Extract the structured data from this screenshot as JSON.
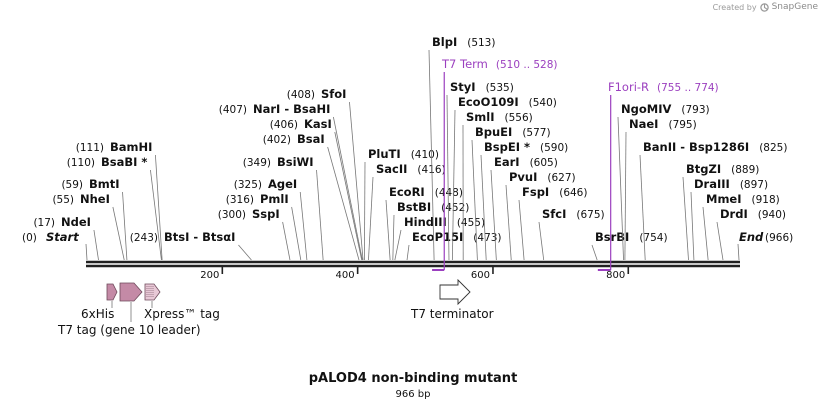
{
  "credit": {
    "prefix": "Created by",
    "brand": "SnapGene"
  },
  "map_title": "pALOD4 non-binding mutant",
  "map_length": "966 bp",
  "ruler": [
    {
      "label": "200",
      "pos": 200
    },
    {
      "label": "400",
      "pos": 400
    },
    {
      "label": "600",
      "pos": 600
    },
    {
      "label": "800",
      "pos": 800
    }
  ],
  "enzymes": [
    {
      "name": "NdeI",
      "pos": 17,
      "pos_label": "(17)"
    },
    {
      "name": "NheI",
      "pos": 55,
      "pos_label": "(55)"
    },
    {
      "name": "BmtI",
      "pos": 59,
      "pos_label": "(59)"
    },
    {
      "name": "BsaBI",
      "pos": 110,
      "pos_label": "(110)",
      "star": "*"
    },
    {
      "name": "BamHI",
      "pos": 111,
      "pos_label": "(111)"
    },
    {
      "name": "BtsI - BtsαI",
      "pos": 243,
      "pos_label": "(243)"
    },
    {
      "name": "SspI",
      "pos": 300,
      "pos_label": "(300)"
    },
    {
      "name": "PmlI",
      "pos": 316,
      "pos_label": "(316)"
    },
    {
      "name": "AgeI",
      "pos": 325,
      "pos_label": "(325)"
    },
    {
      "name": "BsiWI",
      "pos": 349,
      "pos_label": "(349)"
    },
    {
      "name": "BsaI",
      "pos": 402,
      "pos_label": "(402)"
    },
    {
      "name": "KasI",
      "pos": 406,
      "pos_label": "(406)"
    },
    {
      "name": "NarI - BsaHI",
      "pos": 407,
      "pos_label": "(407)"
    },
    {
      "name": "SfoI",
      "pos": 408,
      "pos_label": "(408)"
    },
    {
      "name": "PluTI",
      "pos": 410,
      "pos_label": "(410)"
    },
    {
      "name": "SacII",
      "pos": 416,
      "pos_label": "(416)"
    },
    {
      "name": "EcoRI",
      "pos": 448,
      "pos_label": "(448)"
    },
    {
      "name": "BstBI",
      "pos": 452,
      "pos_label": "(452)"
    },
    {
      "name": "HindIII",
      "pos": 455,
      "pos_label": "(455)"
    },
    {
      "name": "EcoP15I",
      "pos": 473,
      "pos_label": "(473)"
    },
    {
      "name": "BlpI",
      "pos": 513,
      "pos_label": "(513)"
    },
    {
      "name": "StyI",
      "pos": 535,
      "pos_label": "(535)"
    },
    {
      "name": "EcoO109I",
      "pos": 540,
      "pos_label": "(540)"
    },
    {
      "name": "SmlI",
      "pos": 556,
      "pos_label": "(556)"
    },
    {
      "name": "BpuEI",
      "pos": 577,
      "pos_label": "(577)"
    },
    {
      "name": "BspEI",
      "pos": 590,
      "pos_label": "(590)",
      "star": "*"
    },
    {
      "name": "EarI",
      "pos": 605,
      "pos_label": "(605)"
    },
    {
      "name": "PvuI",
      "pos": 627,
      "pos_label": "(627)"
    },
    {
      "name": "FspI",
      "pos": 646,
      "pos_label": "(646)"
    },
    {
      "name": "SfcI",
      "pos": 675,
      "pos_label": "(675)"
    },
    {
      "name": "BsrBI",
      "pos": 754,
      "pos_label": "(754)"
    },
    {
      "name": "NgoMIV",
      "pos": 793,
      "pos_label": "(793)"
    },
    {
      "name": "NaeI",
      "pos": 795,
      "pos_label": "(795)"
    },
    {
      "name": "BanII - Bsp1286I",
      "pos": 825,
      "pos_label": "(825)"
    },
    {
      "name": "BtgZI",
      "pos": 889,
      "pos_label": "(889)"
    },
    {
      "name": "DraIII",
      "pos": 897,
      "pos_label": "(897)"
    },
    {
      "name": "MmeI",
      "pos": 918,
      "pos_label": "(918)"
    },
    {
      "name": "DrdI",
      "pos": 940,
      "pos_label": "(940)"
    }
  ],
  "ends": {
    "start": {
      "name": "Start",
      "pos_label": "(0)"
    },
    "end": {
      "name": "End",
      "pos_label": "(966)"
    }
  },
  "primers": [
    {
      "name": "T7 Term",
      "range": "(510 .. 528)",
      "start": 510,
      "end": 528
    },
    {
      "name": "F1ori-R",
      "range": "(755 .. 774)",
      "start": 755,
      "end": 774
    }
  ],
  "features": [
    {
      "name": "6xHis"
    },
    {
      "name": "T7 tag (gene 10 leader)"
    },
    {
      "name": "Xpress™ tag"
    },
    {
      "name": "T7 terminator"
    }
  ],
  "colors": {
    "text": "#111111",
    "leader": "#777777",
    "primer": "#9b3fbf",
    "feature_pink": "#c48aa6",
    "feature_stroke": "#6e4a5b",
    "backbone": "#222222"
  }
}
